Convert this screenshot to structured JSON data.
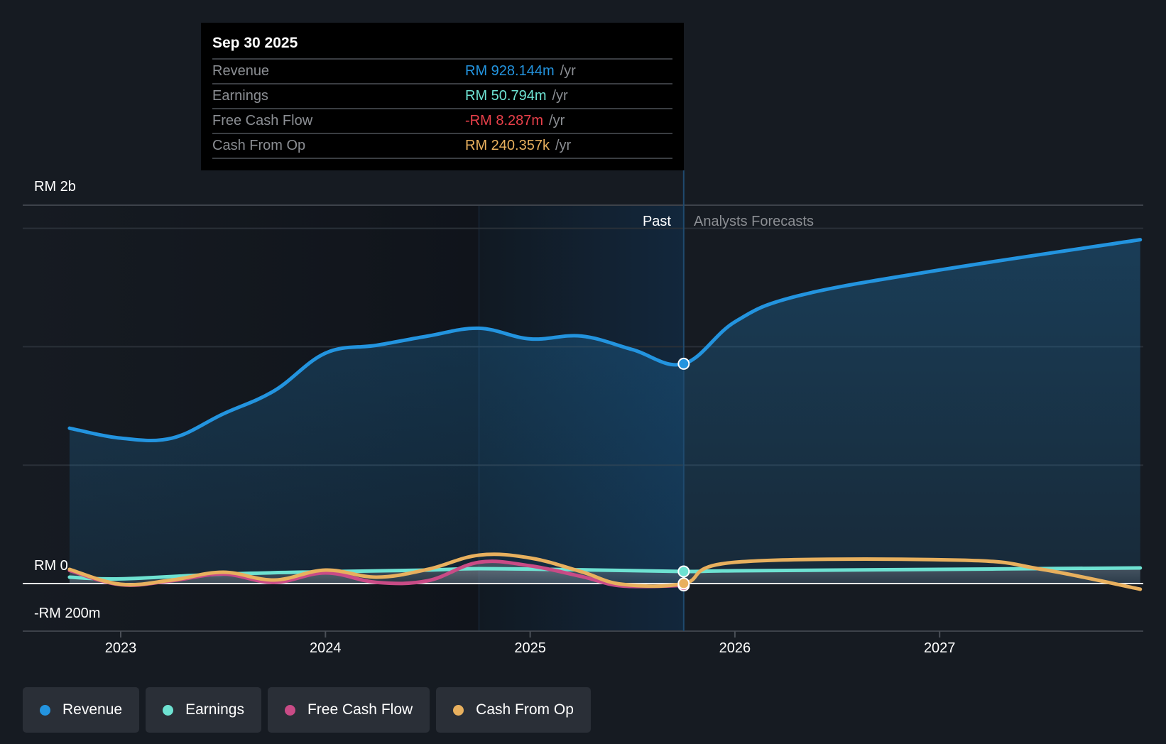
{
  "tooltip": {
    "date": "Sep 30 2025",
    "rows": [
      {
        "label": "Revenue",
        "value": "RM 928.144m",
        "unit": "/yr",
        "color": "#2394df"
      },
      {
        "label": "Earnings",
        "value": "RM 50.794m",
        "unit": "/yr",
        "color": "#6ee2d2"
      },
      {
        "label": "Free Cash Flow",
        "value": "-RM 8.287m",
        "unit": "/yr",
        "color": "#e8404a"
      },
      {
        "label": "Cash From Op",
        "value": "RM 240.357k",
        "unit": "/yr",
        "color": "#e8b05e"
      }
    ]
  },
  "regions": {
    "past": "Past",
    "forecast": "Analysts Forecasts"
  },
  "legend": [
    {
      "label": "Revenue",
      "color": "#2394df"
    },
    {
      "label": "Earnings",
      "color": "#6ee2d2"
    },
    {
      "label": "Free Cash Flow",
      "color": "#c94b86"
    },
    {
      "label": "Cash From Op",
      "color": "#e8b05e"
    }
  ],
  "chart_data": {
    "type": "line",
    "title": "",
    "xlabel": "",
    "ylabel": "",
    "units": "RM millions",
    "xlim": [
      2022.45,
      2028.0
    ],
    "ylim": [
      -200,
      1600
    ],
    "y_tick_labels": [
      {
        "value": 2000,
        "label": "RM 2b"
      },
      {
        "value": 0,
        "label": "RM 0"
      },
      {
        "value": -200,
        "label": "-RM 200m"
      }
    ],
    "y_gridlines": [
      0,
      500,
      1000,
      1500
    ],
    "x_ticks": [
      {
        "value": 2023,
        "label": "2023"
      },
      {
        "value": 2024,
        "label": "2024"
      },
      {
        "value": 2025,
        "label": "2025"
      },
      {
        "value": 2026,
        "label": "2026"
      },
      {
        "value": 2027,
        "label": "2027"
      }
    ],
    "past_highlight_range": [
      2024.75,
      2025.75
    ],
    "divider_x": 2025.75,
    "legend_position": "bottom-left",
    "series": [
      {
        "name": "Revenue",
        "color": "#2394df",
        "area": true,
        "points": [
          [
            2022.75,
            656
          ],
          [
            2023.0,
            614
          ],
          [
            2023.25,
            614
          ],
          [
            2023.5,
            716
          ],
          [
            2023.75,
            814
          ],
          [
            2024.0,
            973
          ],
          [
            2024.25,
            1006
          ],
          [
            2024.5,
            1045
          ],
          [
            2024.75,
            1078
          ],
          [
            2025.0,
            1033
          ],
          [
            2025.25,
            1045
          ],
          [
            2025.5,
            988
          ],
          [
            2025.75,
            928
          ],
          [
            2026.0,
            1105
          ],
          [
            2026.3,
            1213
          ],
          [
            2026.95,
            1317
          ],
          [
            2027.98,
            1452
          ]
        ],
        "marker_at": 2025.75
      },
      {
        "name": "Earnings",
        "color": "#6ee2d2",
        "area": true,
        "points": [
          [
            2022.75,
            27
          ],
          [
            2023.0,
            20
          ],
          [
            2023.5,
            40
          ],
          [
            2024.0,
            50
          ],
          [
            2024.5,
            57
          ],
          [
            2024.75,
            63
          ],
          [
            2025.25,
            58
          ],
          [
            2025.75,
            51
          ],
          [
            2026.0,
            54
          ],
          [
            2027.0,
            60
          ],
          [
            2027.98,
            66
          ]
        ],
        "marker_at": 2025.75
      },
      {
        "name": "Free Cash Flow",
        "color": "#c94b86",
        "area": true,
        "points": [
          [
            2022.75,
            55
          ],
          [
            2023.0,
            -5
          ],
          [
            2023.25,
            12
          ],
          [
            2023.5,
            40
          ],
          [
            2023.75,
            5
          ],
          [
            2024.0,
            45
          ],
          [
            2024.25,
            5
          ],
          [
            2024.5,
            12
          ],
          [
            2024.75,
            90
          ],
          [
            2025.0,
            75
          ],
          [
            2025.25,
            30
          ],
          [
            2025.45,
            -10
          ],
          [
            2025.75,
            -8
          ]
        ],
        "marker_at": 2025.75
      },
      {
        "name": "Cash From Op",
        "color": "#e8b05e",
        "area": false,
        "points": [
          [
            2022.75,
            60
          ],
          [
            2023.0,
            -3
          ],
          [
            2023.25,
            15
          ],
          [
            2023.5,
            48
          ],
          [
            2023.75,
            15
          ],
          [
            2024.0,
            57
          ],
          [
            2024.25,
            27
          ],
          [
            2024.5,
            60
          ],
          [
            2024.75,
            120
          ],
          [
            2025.0,
            108
          ],
          [
            2025.25,
            50
          ],
          [
            2025.45,
            -3
          ],
          [
            2025.75,
            0.24
          ],
          [
            2026.0,
            90
          ],
          [
            2027.1,
            99
          ],
          [
            2027.5,
            60
          ],
          [
            2027.98,
            -24
          ]
        ],
        "marker_at": 2025.75
      }
    ]
  }
}
